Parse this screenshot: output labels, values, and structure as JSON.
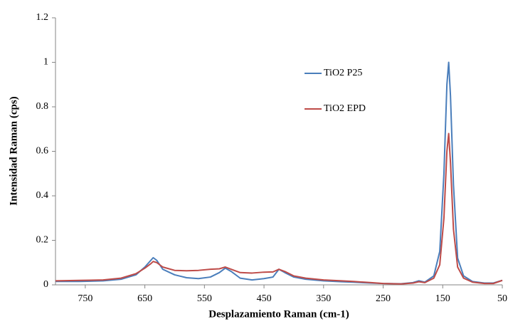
{
  "chart_data": {
    "type": "line",
    "x_label": "Desplazamiento Raman (cm-1)",
    "y_label": "Intensidad Raman (cps)",
    "x": [
      800,
      760,
      720,
      690,
      665,
      650,
      640,
      636,
      630,
      620,
      600,
      580,
      560,
      540,
      525,
      515,
      505,
      490,
      470,
      450,
      435,
      425,
      415,
      400,
      380,
      350,
      320,
      300,
      270,
      250,
      220,
      200,
      190,
      180,
      165,
      155,
      148,
      143,
      140,
      137,
      132,
      125,
      115,
      100,
      80,
      65,
      50
    ],
    "series": [
      {
        "name": "TiO2 P25",
        "color": "#4a7ebb",
        "values": [
          0.015,
          0.015,
          0.018,
          0.025,
          0.045,
          0.08,
          0.11,
          0.122,
          0.11,
          0.07,
          0.045,
          0.032,
          0.028,
          0.035,
          0.055,
          0.075,
          0.06,
          0.03,
          0.022,
          0.028,
          0.035,
          0.07,
          0.055,
          0.035,
          0.025,
          0.018,
          0.014,
          0.012,
          0.008,
          0.006,
          0.005,
          0.01,
          0.018,
          0.012,
          0.04,
          0.15,
          0.5,
          0.9,
          1.0,
          0.85,
          0.45,
          0.12,
          0.04,
          0.015,
          0.008,
          0.008,
          0.02
        ]
      },
      {
        "name": "TiO2 EPD",
        "color": "#be4b48",
        "values": [
          0.018,
          0.02,
          0.022,
          0.03,
          0.05,
          0.075,
          0.095,
          0.105,
          0.1,
          0.08,
          0.065,
          0.063,
          0.065,
          0.07,
          0.072,
          0.08,
          0.07,
          0.055,
          0.053,
          0.057,
          0.058,
          0.07,
          0.06,
          0.04,
          0.03,
          0.022,
          0.018,
          0.015,
          0.01,
          0.006,
          0.004,
          0.008,
          0.014,
          0.01,
          0.03,
          0.09,
          0.3,
          0.6,
          0.68,
          0.55,
          0.25,
          0.08,
          0.03,
          0.012,
          0.006,
          0.006,
          0.02
        ]
      }
    ],
    "xlim": [
      800,
      50
    ],
    "xticks": [
      750,
      650,
      550,
      450,
      350,
      250,
      150,
      50
    ],
    "ylim": [
      0,
      1.2
    ],
    "yticks": [
      0,
      0.2,
      0.4,
      0.6,
      0.8,
      1,
      1.2
    ],
    "grid": false
  }
}
